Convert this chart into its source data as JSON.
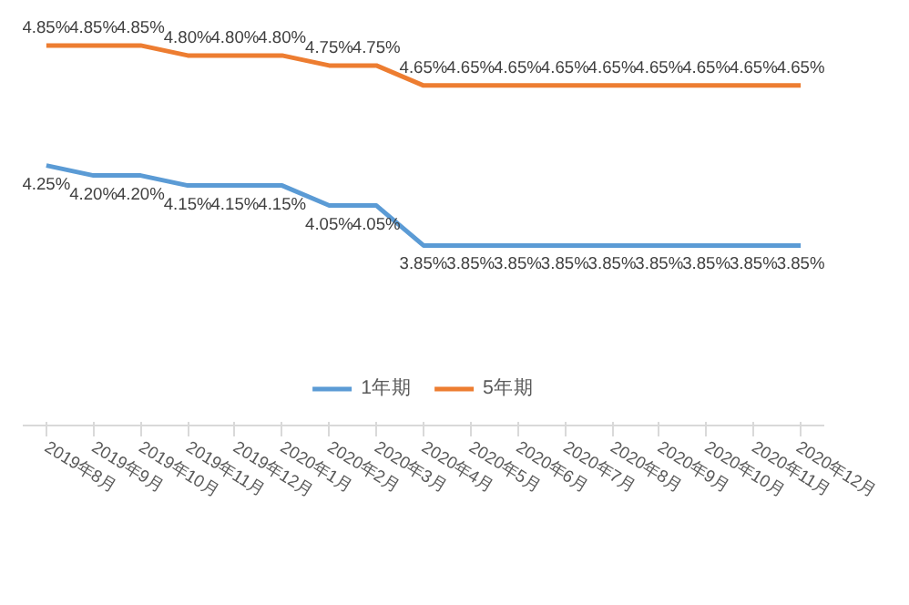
{
  "chart_data": {
    "type": "line",
    "categories": [
      "2019年8月",
      "2019年9月",
      "2019年10月",
      "2019年11月",
      "2019年12月",
      "2020年1月",
      "2020年2月",
      "2020年3月",
      "2020年4月",
      "2020年5月",
      "2020年6月",
      "2020年7月",
      "2020年8月",
      "2020年9月",
      "2020年10月",
      "2020年11月",
      "2020年12月"
    ],
    "series": [
      {
        "name": "1年期",
        "color": "#5b9bd5",
        "values": [
          4.25,
          4.2,
          4.2,
          4.15,
          4.15,
          4.15,
          4.05,
          4.05,
          3.85,
          3.85,
          3.85,
          3.85,
          3.85,
          3.85,
          3.85,
          3.85,
          3.85
        ],
        "value_labels": [
          "4.25%",
          "4.20%",
          "4.20%",
          "4.15%",
          "4.15%",
          "4.15%",
          "4.05%",
          "4.05%",
          "3.85%",
          "3.85%",
          "3.85%",
          "3.85%",
          "3.85%",
          "3.85%",
          "3.85%",
          "3.85%",
          "3.85%"
        ]
      },
      {
        "name": "5年期",
        "color": "#ed7d31",
        "values": [
          4.85,
          4.85,
          4.85,
          4.8,
          4.8,
          4.8,
          4.75,
          4.75,
          4.65,
          4.65,
          4.65,
          4.65,
          4.65,
          4.65,
          4.65,
          4.65,
          4.65
        ],
        "value_labels": [
          "4.85%",
          "4.85%",
          "4.85%",
          "4.80%",
          "4.80%",
          "4.80%",
          "4.75%",
          "4.75%",
          "4.65%",
          "4.65%",
          "4.65%",
          "4.65%",
          "4.65%",
          "4.65%",
          "4.65%",
          "4.65%",
          "4.65%"
        ]
      }
    ],
    "legend": "bottom",
    "line_style": "solid"
  }
}
